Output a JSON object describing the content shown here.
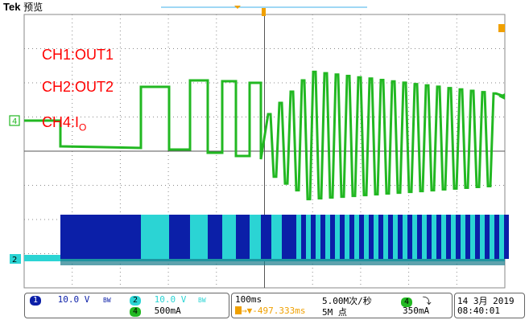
{
  "header": {
    "brand": "Tek",
    "mode": "预览"
  },
  "annotations": [
    {
      "main": "CH1:OUT1",
      "sub": ""
    },
    {
      "main": "CH2:OUT2",
      "sub": ""
    },
    {
      "main": "CH4:I",
      "sub": "O"
    }
  ],
  "channel_markers": {
    "ch4": "4",
    "ch2": "2"
  },
  "colors": {
    "ch1": "#0b1fa8",
    "ch2": "#2bd4d4",
    "ch4": "#22b822",
    "annotation": "#ff0000",
    "grid": "#8a8a8a",
    "trigger": "#f0a000"
  },
  "status": {
    "ch1_label": "1",
    "ch1_scale": "10.0 V",
    "ch1_bw": "BW",
    "ch2_label": "2",
    "ch2_scale": "10.0 V",
    "ch2_bw": "BW",
    "ch4_label": "4",
    "ch4_scale": "500mA",
    "timebase": "100ms",
    "sample_rate": "5.00M次/秒",
    "trigger_offset": "→▼-497.333ms",
    "record_length": "5M 点",
    "trigger_source": "4",
    "trigger_slope": "⤵",
    "trigger_level": "350mA",
    "date": "14 3月  2019",
    "time": "08:40:01"
  }
}
